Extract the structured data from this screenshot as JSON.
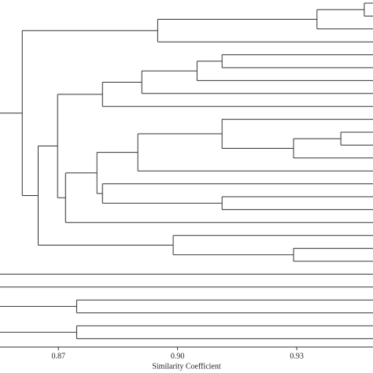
{
  "chart_data": {
    "type": "dendrogram",
    "x_label": "Similarity Coefficient",
    "xlim": [
      0.8553,
      0.9492
    ],
    "xticks": [
      0.87,
      {
        "value": 0.9,
        "label": "0.90"
      },
      0.93
    ],
    "tree": [
      {
        "height": 0.8609,
        "children": [
          {
            "height": 0.895,
            "children": [
              {
                "height": 0.9351,
                "children": [
                  {
                    "height": 0.947,
                    "children": [
                      {},
                      {}
                    ]
                  },
                  {}
                ]
              },
              {}
            ]
          },
          {
            "height": 0.8649,
            "children": [
              {
                "height": 0.8698,
                "children": [
                  {
                    "height": 0.8811,
                    "children": [
                      {
                        "height": 0.891,
                        "children": [
                          {
                            "height": 0.9049,
                            "children": [
                              {
                                "height": 0.9112,
                                "children": [
                                  {},
                                  {}
                                ]
                              },
                              {}
                            ]
                          },
                          {}
                        ]
                      },
                      {}
                    ]
                  },
                  {
                    "height": 0.8718,
                    "children": [
                      {
                        "height": 0.8797,
                        "children": [
                          {
                            "height": 0.89,
                            "children": [
                              {
                                "height": 0.9112,
                                "children": [
                                  {},
                                  {
                                    "height": 0.9292,
                                    "children": [
                                      {
                                        "height": 0.9411,
                                        "children": [
                                          {},
                                          {}
                                        ]
                                      },
                                      {}
                                    ]
                                  }
                                ]
                              },
                              {}
                            ]
                          },
                          {
                            "height": 0.8811,
                            "children": [
                              {},
                              {
                                "height": 0.9112,
                                "children": [
                                  {},
                                  {}
                                ]
                              }
                            ]
                          }
                        ]
                      },
                      {}
                    ]
                  }
                ]
              },
              {
                "height": 0.8989,
                "children": [
                  {},
                  {
                    "height": 0.9292,
                    "children": [
                      {},
                      {}
                    ]
                  }
                ]
              }
            ]
          }
        ]
      },
      {},
      {},
      {
        "height": 0.8746,
        "children": [
          {},
          {}
        ]
      },
      {
        "height": 0.8746,
        "children": [
          {},
          {}
        ]
      }
    ]
  }
}
